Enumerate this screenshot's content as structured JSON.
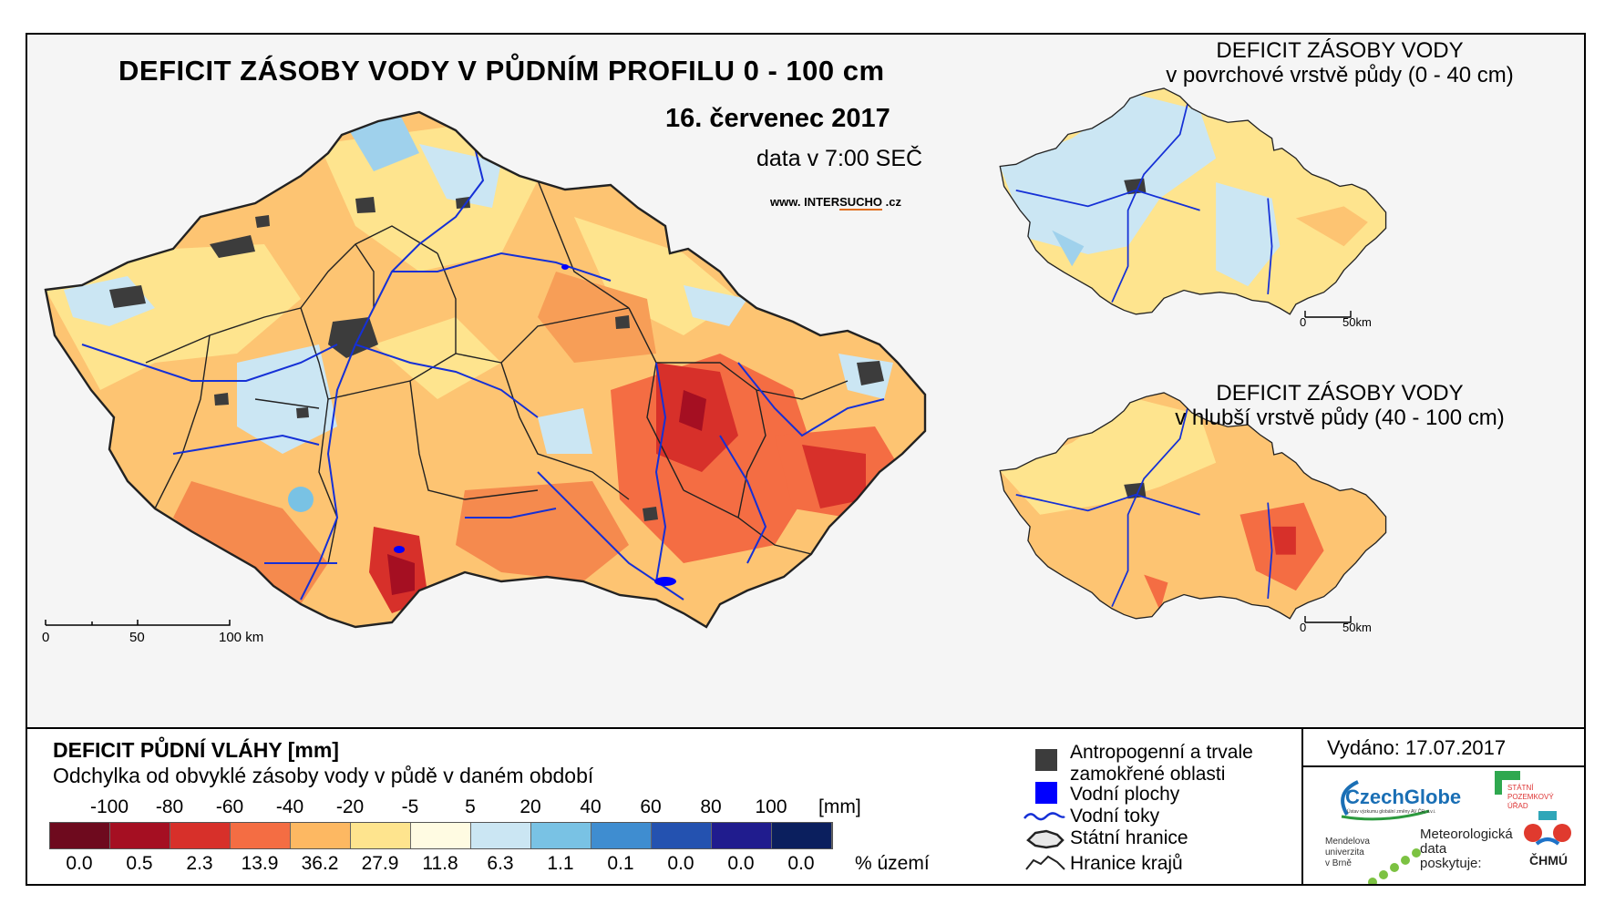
{
  "main_map": {
    "title": "DEFICIT ZÁSOBY VODY V PŮDNÍM PROFILU 0 - 100 cm",
    "date": "16. červenec 2017",
    "time": "data v 7:00 SEČ",
    "website_pre": "www. INTER",
    "website_hl": "SUCHO",
    "website_post": " .cz",
    "scale_labels": [
      "0",
      "50",
      "100 km"
    ]
  },
  "inset_surface": {
    "title_line1": "DEFICIT ZÁSOBY VODY",
    "title_line2": "v povrchové vrstvě půdy (0 - 40 cm)",
    "scale_labels": [
      "0",
      "50km"
    ]
  },
  "inset_deep": {
    "title_line1": "DEFICIT ZÁSOBY VODY",
    "title_line2": "v hlubší vrstvě půdy (40 - 100 cm)",
    "scale_labels": [
      "0",
      "50km"
    ]
  },
  "legend": {
    "title": "DEFICIT PŮDNÍ VLÁHY [mm]",
    "subtitle": "Odchylka od obvyklé zásoby vody v půdě v daném období",
    "ticks": [
      "-100",
      "-80",
      "-60",
      "-40",
      "-20",
      "-5",
      "5",
      "20",
      "40",
      "60",
      "80",
      "100"
    ],
    "unit": "[mm]",
    "classes": [
      {
        "color": "#6e0a1e",
        "pct": "0.0"
      },
      {
        "color": "#a50f22",
        "pct": "0.5"
      },
      {
        "color": "#d7302a",
        "pct": "2.3"
      },
      {
        "color": "#f46d43",
        "pct": "13.9"
      },
      {
        "color": "#fdb862",
        "pct": "36.2"
      },
      {
        "color": "#fee48e",
        "pct": "27.9"
      },
      {
        "color": "#fffbe2",
        "pct": "11.8"
      },
      {
        "color": "#cbe6f3",
        "pct": "6.3"
      },
      {
        "color": "#79c2e4",
        "pct": "1.1"
      },
      {
        "color": "#3f8dd0",
        "pct": "0.1"
      },
      {
        "color": "#2452b0",
        "pct": "0.0"
      },
      {
        "color": "#201c8e",
        "pct": "0.0"
      },
      {
        "color": "#0b1f5e",
        "pct": "0.0"
      }
    ],
    "pct_unit": "% území"
  },
  "symbols": {
    "urban_line1": "Antropogenní a trvale",
    "urban_line2": "zamokřené oblasti",
    "water_bodies": "Vodní plochy",
    "rivers": "Vodní toky",
    "state_border": "Státní hranice",
    "regions": "Hranice krajů"
  },
  "issued": "Vydáno: 17.07.2017",
  "logos": {
    "czechglobe": "CzechGlobe",
    "czechglobe_sub": "Ústav výzkumu globální změny AV ČR, v.v.i.",
    "spu": [
      "STÁTNÍ",
      "POZEMKOVÝ",
      "ÚŘAD"
    ],
    "mendel": [
      "Mendelova",
      "univerzita",
      "v Brně"
    ],
    "meteo": [
      "Meteorologická",
      "data",
      "poskytuje:"
    ],
    "chmu": "ČHMÚ"
  },
  "colors": {
    "river": "#1530d6",
    "urban": "#3c3c3c",
    "water": "#0000ff",
    "map_background": "#f5f5f5"
  }
}
